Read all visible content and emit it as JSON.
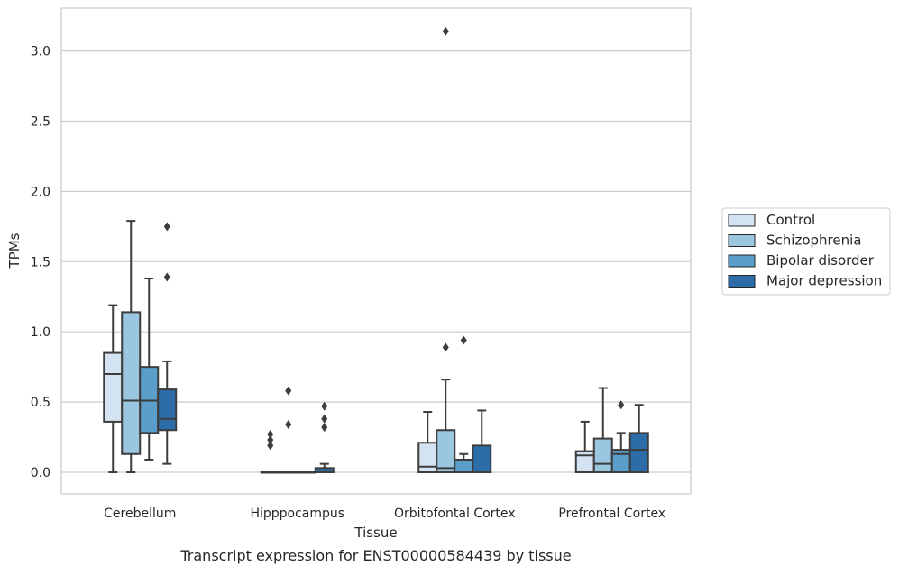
{
  "chart_data": {
    "type": "boxplot",
    "xlabel": "Tissue",
    "ylabel": "TPMs",
    "caption": "Transcript expression for ENST00000584439 by tissue",
    "ylim": [
      -0.15,
      3.3
    ],
    "yticks": [
      0.0,
      0.5,
      1.0,
      1.5,
      2.0,
      2.5,
      3.0
    ],
    "ytick_labels": [
      "0.0",
      "0.5",
      "1.0",
      "1.5",
      "2.0",
      "2.5",
      "3.0"
    ],
    "grid": "horizontal",
    "legend_position": "right",
    "categories": [
      "Cerebellum",
      "Hipppocampus",
      "Orbitofontal Cortex",
      "Prefrontal Cortex"
    ],
    "series": [
      {
        "name": "Control",
        "color": "#d4e3f1",
        "boxes": [
          {
            "whislo": 0.0,
            "q1": 0.36,
            "med": 0.7,
            "q3": 0.85,
            "whishi": 1.19,
            "fliers": []
          },
          {
            "whislo": 0.0,
            "q1": 0.0,
            "med": 0.0,
            "q3": 0.0,
            "whishi": 0.0,
            "fliers": [
              0.19,
              0.23,
              0.27
            ]
          },
          {
            "whislo": 0.0,
            "q1": 0.0,
            "med": 0.04,
            "q3": 0.21,
            "whishi": 0.43,
            "fliers": []
          },
          {
            "whislo": 0.0,
            "q1": 0.0,
            "med": 0.12,
            "q3": 0.15,
            "whishi": 0.36,
            "fliers": []
          }
        ]
      },
      {
        "name": "Schizophrenia",
        "color": "#9ac6df",
        "boxes": [
          {
            "whislo": 0.0,
            "q1": 0.13,
            "med": 0.51,
            "q3": 1.14,
            "whishi": 1.79,
            "fliers": []
          },
          {
            "whislo": 0.0,
            "q1": 0.0,
            "med": 0.0,
            "q3": 0.0,
            "whishi": 0.0,
            "fliers": [
              0.34,
              0.58
            ]
          },
          {
            "whislo": 0.0,
            "q1": 0.0,
            "med": 0.03,
            "q3": 0.3,
            "whishi": 0.66,
            "fliers": [
              0.89,
              3.14
            ]
          },
          {
            "whislo": 0.0,
            "q1": 0.0,
            "med": 0.06,
            "q3": 0.24,
            "whishi": 0.6,
            "fliers": []
          }
        ]
      },
      {
        "name": "Bipolar disorder",
        "color": "#5a9ec9",
        "boxes": [
          {
            "whislo": 0.09,
            "q1": 0.28,
            "med": 0.51,
            "q3": 0.75,
            "whishi": 1.38,
            "fliers": []
          },
          {
            "whislo": 0.0,
            "q1": 0.0,
            "med": 0.0,
            "q3": 0.0,
            "whishi": 0.0,
            "fliers": []
          },
          {
            "whislo": 0.0,
            "q1": 0.0,
            "med": 0.0,
            "q3": 0.09,
            "whishi": 0.13,
            "fliers": [
              0.94
            ]
          },
          {
            "whislo": 0.0,
            "q1": 0.0,
            "med": 0.13,
            "q3": 0.16,
            "whishi": 0.28,
            "fliers": [
              0.48
            ]
          }
        ]
      },
      {
        "name": "Major depression",
        "color": "#2b6ca9",
        "boxes": [
          {
            "whislo": 0.06,
            "q1": 0.3,
            "med": 0.38,
            "q3": 0.59,
            "whishi": 0.79,
            "fliers": [
              1.39,
              1.75
            ]
          },
          {
            "whislo": 0.0,
            "q1": 0.0,
            "med": 0.0,
            "q3": 0.03,
            "whishi": 0.06,
            "fliers": [
              0.32,
              0.38,
              0.47
            ]
          },
          {
            "whislo": 0.0,
            "q1": 0.0,
            "med": 0.0,
            "q3": 0.19,
            "whishi": 0.44,
            "fliers": []
          },
          {
            "whislo": 0.0,
            "q1": 0.0,
            "med": 0.16,
            "q3": 0.28,
            "whishi": 0.48,
            "fliers": []
          }
        ]
      }
    ]
  }
}
